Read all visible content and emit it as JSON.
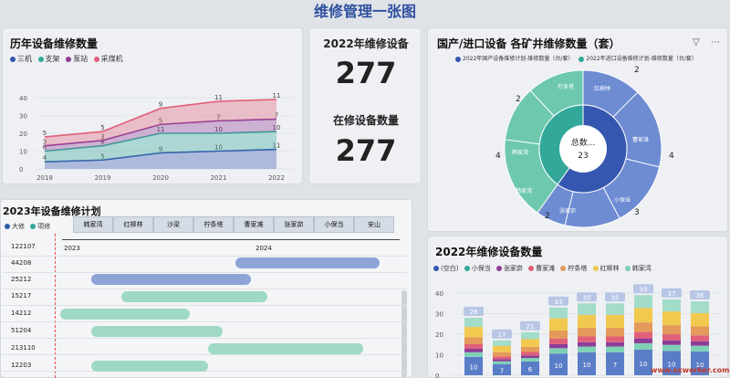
{
  "page_title": "维修管理一张图",
  "history": {
    "title": "历年设备维修数量",
    "legend": [
      {
        "label": "三机",
        "color": "#3557b0"
      },
      {
        "label": "支架",
        "color": "#33a89a"
      },
      {
        "label": "泵站",
        "color": "#8e3c97"
      },
      {
        "label": "采煤机",
        "color": "#e0607a"
      }
    ],
    "y_ticks": [
      "40",
      "30",
      "20",
      "10",
      "0"
    ],
    "chart_data": {
      "type": "area",
      "x": [
        "2018",
        "2019",
        "2020",
        "2021",
        "2022"
      ],
      "series": [
        {
          "name": "三机",
          "values": [
            4,
            5,
            9,
            10,
            11
          ]
        },
        {
          "name": "支架",
          "values": [
            6,
            8,
            11,
            10,
            10
          ]
        },
        {
          "name": "泵站",
          "values": [
            3,
            3,
            5,
            7,
            7
          ]
        },
        {
          "name": "采煤机",
          "values": [
            5,
            5,
            9,
            11,
            11
          ]
        }
      ],
      "ylim": [
        0,
        40
      ],
      "labels": [
        [
          "4",
          "5",
          "9",
          "10",
          "11"
        ],
        [
          "6",
          "8",
          "11",
          "10",
          "10"
        ],
        [
          "3",
          "3",
          "5",
          "7",
          "7"
        ],
        [
          "5",
          "5",
          "9",
          "11",
          "11"
        ]
      ]
    }
  },
  "kpi": {
    "label1": "2022年维修设备",
    "value1": "277",
    "label2": "在修设备数量",
    "value2": "277"
  },
  "sunburst": {
    "title": "国产/进口设备 各矿井维修数量（套）",
    "legend": [
      {
        "label": "2022年国产设备维修计划-维修数量（台/套）",
        "color": "#3557b0"
      },
      {
        "label": "2022年进口设备维修计划-维修数量（台/套）",
        "color": "#33a89a"
      }
    ],
    "center_label": "总数...",
    "center_value": "23",
    "outer_numbers": [
      "2",
      "2",
      "4",
      "4",
      "2",
      "3"
    ],
    "inner_labels": [
      "2022年进口设备维修计划",
      "2022年国产设备维修计划"
    ],
    "segment_labels": [
      "柠条塔",
      "红柳林",
      "红柳林",
      "曹家滩",
      "小保当",
      "张家峁",
      "韩家湾",
      "柠条塔",
      "韩家湾"
    ]
  },
  "gantt": {
    "title": "2023年设备维修计划",
    "legend": [
      {
        "label": "大修",
        "color": "#2f5ea8"
      },
      {
        "label": "项修",
        "color": "#33a89a"
      }
    ],
    "columns": [
      "韩家湾",
      "红柳林",
      "沙梁",
      "柠条塔",
      "曹家滩",
      "张家峁",
      "小保当",
      "安山"
    ],
    "axis": [
      "2023",
      "2024"
    ],
    "rows": [
      {
        "id": "122107"
      },
      {
        "id": "44208"
      },
      {
        "id": "25212"
      },
      {
        "id": "15217"
      },
      {
        "id": "14212"
      },
      {
        "id": "51204"
      },
      {
        "id": "213110"
      },
      {
        "id": "12203"
      }
    ]
  },
  "equipment": {
    "title": "2022年维修设备数量",
    "legend": [
      {
        "label": "(空白)",
        "color": "#3557b0"
      },
      {
        "label": "小保当",
        "color": "#33a89a"
      },
      {
        "label": "张家峁",
        "color": "#8e3c97"
      },
      {
        "label": "曹家滩",
        "color": "#e0607a"
      },
      {
        "label": "柠条塔",
        "color": "#e39a5a"
      },
      {
        "label": "红柳林",
        "color": "#f1c94f"
      },
      {
        "label": "韩家湾",
        "color": "#7fd0b6"
      }
    ],
    "y_ticks": [
      "40",
      "30",
      "20",
      "10",
      "0"
    ],
    "chart_data": {
      "type": "bar",
      "totals": [
        28,
        17,
        21,
        33,
        35,
        35,
        39,
        37,
        36
      ],
      "ylim": [
        0,
        40
      ],
      "inner_labels": [
        "10",
        "7",
        "6",
        "10",
        "10",
        "7",
        "10",
        "10",
        "10"
      ]
    }
  },
  "watermark": "www.sxworker.com"
}
